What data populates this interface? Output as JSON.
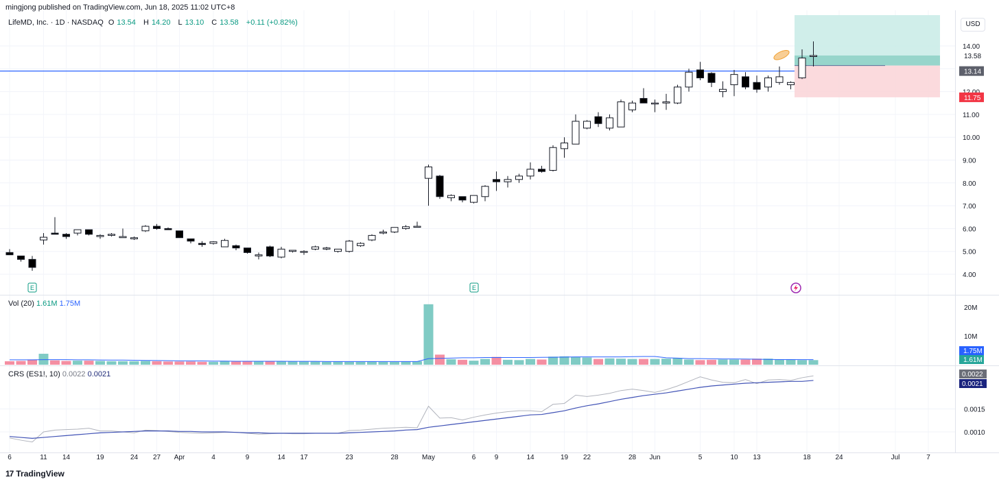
{
  "attribution": "mingjong published on TradingView.com, Jun 18, 2025 11:02 UTC+8",
  "legend": {
    "symbol": "LifeMD, Inc. · 1D · NASDAQ",
    "o_label": "O",
    "o": "13.54",
    "h_label": "H",
    "h": "14.20",
    "l_label": "L",
    "l": "13.10",
    "c_label": "C",
    "c": "13.58",
    "change": "+0.11 (+0.82%)"
  },
  "currency": "USD",
  "volume_legend": {
    "label": "Vol (20)",
    "value": "1.61M",
    "ma": "1.75M"
  },
  "crs_legend": {
    "label": "CRS (ES1!, 10)",
    "value": "0.0022",
    "ma": "0.0021"
  },
  "footer": {
    "brand": "TradingView",
    "logo_icon": "tradingview-logo-icon"
  },
  "colors": {
    "up_body": "#ffffff",
    "down_body": "#000000",
    "wick": "#131722",
    "vol_up": "#80cbc4",
    "vol_down": "#f48fa2",
    "vol_ma": "#2962ff",
    "level_line": "#2962ff",
    "target_zone": "#b2dfdb",
    "stop_zone": "#f8d7da",
    "crs": "#b0b3bc",
    "crs_ma": "#3f51b5"
  },
  "chart_data": {
    "type": "candlestick",
    "interval": "1D",
    "price_axis": {
      "ticks": [
        4,
        5,
        6,
        7,
        8,
        9,
        10,
        11,
        12,
        13,
        14
      ],
      "tick_labels": [
        "4.00",
        "5.00",
        "6.00",
        "7.00",
        "8.00",
        "9.00",
        "10.00",
        "11.00",
        "12.00",
        "13.00",
        "14.00"
      ],
      "range": [
        3.6,
        15.1
      ]
    },
    "x_tick_labels": [
      "6",
      "11",
      "14",
      "19",
      "24",
      "27",
      "Apr",
      "4",
      "9",
      "14",
      "17",
      "23",
      "28",
      "May",
      "6",
      "9",
      "14",
      "19",
      "22",
      "28",
      "Jun",
      "5",
      "10",
      "13",
      "18",
      "24",
      "Jul",
      "7"
    ],
    "price_badges": [
      {
        "value": "13.58",
        "style": "plain"
      },
      {
        "value": "13.14",
        "style": "grey"
      },
      {
        "value": "11.75",
        "style": "red"
      }
    ],
    "horizontal_level": 12.9,
    "position": {
      "entry": 13.14,
      "target": 15.35,
      "stop": 11.75
    },
    "earnings_markers": [
      {
        "index": 2,
        "label": "E"
      },
      {
        "index": 41,
        "label": "E"
      }
    ],
    "candles": [
      [
        4.95,
        5.1,
        4.85,
        4.85
      ],
      [
        4.8,
        4.8,
        4.55,
        4.65
      ],
      [
        4.65,
        4.8,
        4.15,
        4.3
      ],
      [
        5.5,
        5.8,
        5.3,
        5.62
      ],
      [
        5.8,
        6.5,
        5.75,
        5.75
      ],
      [
        5.75,
        5.8,
        5.55,
        5.65
      ],
      [
        5.8,
        5.95,
        5.7,
        5.95
      ],
      [
        5.95,
        5.95,
        5.7,
        5.75
      ],
      [
        5.65,
        5.75,
        5.55,
        5.7
      ],
      [
        5.7,
        5.8,
        5.65,
        5.75
      ],
      [
        5.6,
        6.0,
        5.6,
        5.65
      ],
      [
        5.55,
        5.65,
        5.5,
        5.6
      ],
      [
        5.9,
        6.15,
        5.85,
        6.1
      ],
      [
        6.1,
        6.2,
        5.95,
        6.0
      ],
      [
        6.0,
        6.05,
        5.95,
        5.95
      ],
      [
        5.9,
        5.9,
        5.6,
        5.6
      ],
      [
        5.55,
        5.55,
        5.35,
        5.45
      ],
      [
        5.35,
        5.45,
        5.2,
        5.3
      ],
      [
        5.35,
        5.45,
        5.3,
        5.42
      ],
      [
        5.2,
        5.55,
        5.2,
        5.48
      ],
      [
        5.25,
        5.3,
        5.05,
        5.15
      ],
      [
        5.15,
        5.15,
        4.9,
        4.95
      ],
      [
        4.8,
        4.95,
        4.65,
        4.85
      ],
      [
        5.2,
        5.25,
        4.75,
        4.8
      ],
      [
        4.75,
        5.2,
        4.7,
        5.1
      ],
      [
        5.0,
        5.05,
        4.95,
        5.05
      ],
      [
        5.0,
        5.05,
        4.85,
        5.0
      ],
      [
        5.1,
        5.25,
        5.05,
        5.2
      ],
      [
        5.1,
        5.2,
        5.05,
        5.15
      ],
      [
        5.0,
        5.05,
        4.95,
        5.1
      ],
      [
        5.0,
        5.5,
        4.95,
        5.45
      ],
      [
        5.25,
        5.4,
        5.2,
        5.35
      ],
      [
        5.5,
        5.75,
        5.45,
        5.7
      ],
      [
        5.8,
        5.95,
        5.75,
        5.85
      ],
      [
        5.85,
        6.05,
        5.8,
        6.05
      ],
      [
        6.0,
        6.15,
        5.95,
        6.08
      ],
      [
        6.1,
        6.3,
        6.05,
        6.1
      ],
      [
        8.2,
        8.8,
        7.0,
        8.7
      ],
      [
        8.3,
        8.35,
        7.3,
        7.4
      ],
      [
        7.35,
        7.5,
        7.2,
        7.45
      ],
      [
        7.4,
        7.4,
        7.15,
        7.25
      ],
      [
        7.15,
        7.45,
        7.1,
        7.45
      ],
      [
        7.4,
        7.9,
        7.2,
        7.85
      ],
      [
        8.15,
        8.5,
        7.65,
        8.05
      ],
      [
        8.05,
        8.3,
        7.8,
        8.15
      ],
      [
        8.15,
        8.4,
        8.0,
        8.3
      ],
      [
        8.3,
        8.9,
        8.15,
        8.6
      ],
      [
        8.6,
        8.75,
        8.45,
        8.5
      ],
      [
        8.55,
        9.65,
        8.5,
        9.55
      ],
      [
        9.5,
        10.0,
        9.1,
        9.75
      ],
      [
        9.7,
        11.0,
        9.7,
        10.7
      ],
      [
        10.4,
        10.75,
        10.35,
        10.7
      ],
      [
        10.9,
        11.1,
        10.45,
        10.6
      ],
      [
        10.4,
        11.0,
        10.3,
        10.85
      ],
      [
        10.45,
        11.65,
        10.45,
        11.55
      ],
      [
        11.2,
        11.6,
        11.1,
        11.5
      ],
      [
        11.7,
        12.15,
        11.55,
        11.5
      ],
      [
        11.5,
        11.65,
        11.1,
        11.5
      ],
      [
        11.5,
        11.9,
        11.2,
        11.55
      ],
      [
        11.5,
        12.3,
        11.45,
        12.2
      ],
      [
        12.2,
        13.0,
        12.0,
        12.85
      ],
      [
        12.95,
        13.3,
        12.5,
        12.6
      ],
      [
        12.8,
        12.85,
        12.2,
        12.4
      ],
      [
        12.0,
        12.45,
        11.75,
        12.1
      ],
      [
        12.3,
        12.95,
        11.8,
        12.75
      ],
      [
        12.65,
        12.85,
        12.1,
        12.2
      ],
      [
        12.4,
        12.7,
        11.95,
        12.1
      ],
      [
        12.2,
        12.7,
        12.0,
        12.6
      ],
      [
        12.4,
        13.1,
        12.3,
        12.65
      ],
      [
        12.3,
        12.45,
        12.1,
        12.4
      ],
      [
        12.6,
        13.85,
        12.55,
        13.47
      ],
      [
        13.54,
        14.2,
        13.1,
        13.58
      ]
    ],
    "volume": {
      "axis_ticks": [
        "10M",
        "20M"
      ],
      "values_m": [
        1.2,
        1.3,
        1.8,
        3.8,
        1.5,
        1.3,
        1.4,
        1.4,
        1.3,
        1.2,
        1.2,
        1.2,
        1.3,
        1.2,
        1.1,
        1.1,
        1.1,
        1.0,
        1.0,
        1.2,
        1.1,
        1.1,
        1.1,
        1.3,
        1.2,
        1.1,
        1.1,
        1.1,
        1.0,
        1.1,
        1.0,
        1.0,
        1.1,
        1.0,
        1.0,
        1.1,
        1.2,
        21.0,
        3.5,
        1.9,
        1.7,
        1.4,
        2.0,
        2.7,
        1.7,
        1.6,
        2.0,
        1.8,
        2.8,
        2.9,
        2.7,
        2.5,
        2.0,
        2.2,
        2.1,
        2.0,
        2.0,
        2.0,
        2.1,
        2.3,
        1.8,
        1.6,
        1.7,
        1.8,
        1.8,
        1.8,
        2.1,
        2.1,
        1.8,
        1.7,
        1.6,
        1.6
      ],
      "ma_m": [
        1.7,
        1.7,
        1.7,
        1.75,
        1.75,
        1.75,
        1.7,
        1.7,
        1.65,
        1.6,
        1.6,
        1.55,
        1.5,
        1.45,
        1.4,
        1.35,
        1.3,
        1.3,
        1.25,
        1.25,
        1.2,
        1.2,
        1.2,
        1.2,
        1.2,
        1.15,
        1.15,
        1.15,
        1.1,
        1.1,
        1.1,
        1.1,
        1.1,
        1.1,
        1.1,
        1.1,
        1.1,
        2.1,
        2.2,
        2.3,
        2.4,
        2.4,
        2.5,
        2.5,
        2.5,
        2.5,
        2.5,
        2.55,
        2.6,
        2.65,
        2.7,
        2.7,
        2.7,
        2.7,
        2.7,
        2.8,
        2.85,
        2.85,
        2.4,
        2.3,
        2.1,
        2.1,
        2.05,
        2.0,
        2.0,
        1.95,
        1.9,
        1.85,
        1.8,
        1.8,
        1.75,
        1.75
      ],
      "badges": [
        "1.75M",
        "1.61M"
      ]
    },
    "crs": {
      "axis_ticks": [
        "0.0010",
        "0.0015"
      ],
      "values": [
        0.00087,
        0.00082,
        0.00078,
        0.001,
        0.00104,
        0.00105,
        0.00106,
        0.00108,
        0.00102,
        0.00102,
        0.001,
        0.00098,
        0.00104,
        0.00103,
        0.00101,
        0.00099,
        0.00098,
        0.00097,
        0.00098,
        0.00099,
        0.00099,
        0.00097,
        0.00095,
        0.00096,
        0.00097,
        0.00096,
        0.00096,
        0.00097,
        0.00097,
        0.00097,
        0.00103,
        0.00104,
        0.00106,
        0.00108,
        0.00109,
        0.0011,
        0.00109,
        0.00156,
        0.0013,
        0.00131,
        0.00126,
        0.00132,
        0.00137,
        0.00141,
        0.00144,
        0.00146,
        0.00146,
        0.00144,
        0.0016,
        0.00162,
        0.0018,
        0.00177,
        0.0018,
        0.00184,
        0.0019,
        0.00193,
        0.0019,
        0.00186,
        0.00192,
        0.002,
        0.0021,
        0.0022,
        0.00213,
        0.00208,
        0.00207,
        0.00214,
        0.00205,
        0.00213,
        0.00214,
        0.00212,
        0.00218,
        0.00222
      ],
      "ma": [
        0.0009,
        0.00088,
        0.00086,
        0.00088,
        0.0009,
        0.00092,
        0.00094,
        0.00096,
        0.00098,
        0.00099,
        0.001,
        0.00101,
        0.00102,
        0.00102,
        0.00102,
        0.00101,
        0.00101,
        0.001,
        0.001,
        0.001,
        0.00099,
        0.00098,
        0.00098,
        0.00097,
        0.00097,
        0.00097,
        0.00097,
        0.00097,
        0.00097,
        0.00097,
        0.00098,
        0.00099,
        0.001,
        0.00101,
        0.00102,
        0.00104,
        0.00105,
        0.0011,
        0.00113,
        0.00116,
        0.00119,
        0.00122,
        0.00125,
        0.00128,
        0.00131,
        0.00134,
        0.00137,
        0.00138,
        0.00142,
        0.00146,
        0.00152,
        0.00157,
        0.00161,
        0.00166,
        0.00171,
        0.00175,
        0.00179,
        0.00182,
        0.00185,
        0.00189,
        0.00193,
        0.00197,
        0.002,
        0.00202,
        0.00204,
        0.00206,
        0.00207,
        0.00208,
        0.00209,
        0.0021,
        0.0021,
        0.00212
      ],
      "badges": [
        "0.0022",
        "0.0021"
      ]
    }
  }
}
